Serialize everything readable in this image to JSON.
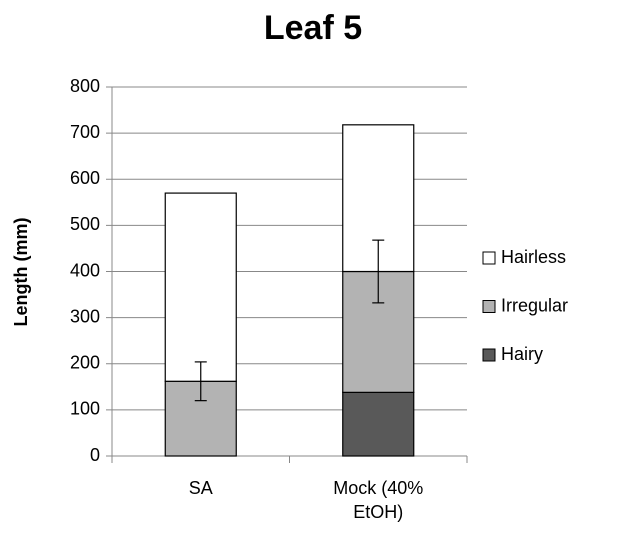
{
  "chart_data": {
    "type": "stacked_bar",
    "title": "Leaf 5",
    "ylabel": "Length (mm)",
    "categories": [
      "SA",
      "Mock (40% EtOH)"
    ],
    "series": [
      {
        "name": "Hairy",
        "color": "#595959",
        "values": [
          0,
          138
        ]
      },
      {
        "name": "Irregular",
        "color": "#b3b3b3",
        "values": [
          162,
          262
        ],
        "errors": [
          42,
          68
        ]
      },
      {
        "name": "Hairless",
        "color": "#ffffff",
        "values": [
          408,
          318
        ]
      }
    ],
    "ylim": [
      0,
      800
    ],
    "yticks": [
      0,
      100,
      200,
      300,
      400,
      500,
      600,
      700,
      800
    ],
    "grid": true,
    "legend": "right"
  }
}
